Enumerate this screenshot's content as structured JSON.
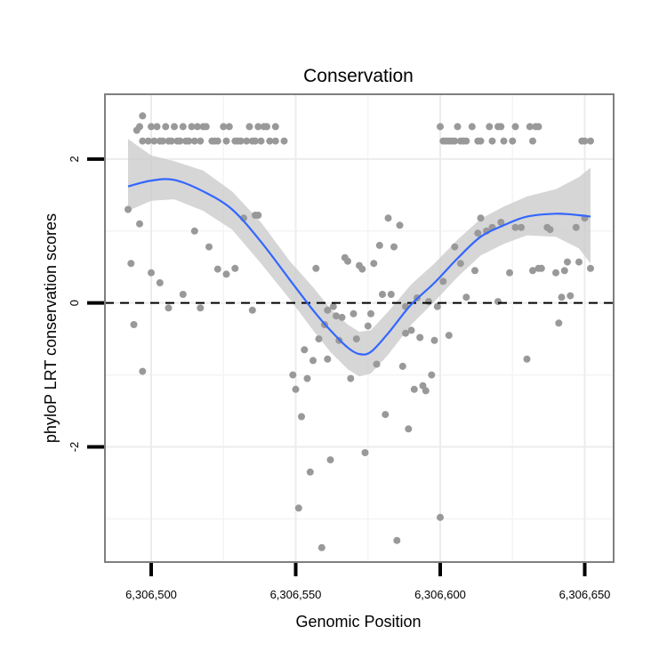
{
  "chart_data": {
    "type": "scatter",
    "title": "Conservation",
    "xlabel": "Genomic Position",
    "ylabel": "phyloP LRT conservation scores",
    "xlim": [
      6306484,
      6306660
    ],
    "ylim": [
      -3.6,
      2.9
    ],
    "x_ticks": [
      6306500,
      6306550,
      6306600,
      6306650
    ],
    "x_tick_labels": [
      "6,306,500",
      "6,306,550",
      "6,306,600",
      "6,306,650"
    ],
    "y_ticks": [
      2,
      0,
      -2
    ],
    "y_tick_labels": [
      "2",
      "0",
      "-2"
    ],
    "x_minor_gridlines": [
      6306525,
      6306575,
      6306625
    ],
    "y_minor_gridlines": [
      1,
      -1,
      -3
    ],
    "reference_line": {
      "y": 0,
      "style": "dashed"
    },
    "series": [
      {
        "name": "scores",
        "kind": "points",
        "color": "#999999",
        "points": [
          [
            6306497,
            2.6
          ],
          [
            6306495,
            2.4
          ],
          [
            6306496,
            2.45
          ],
          [
            6306497,
            2.25
          ],
          [
            6306499,
            2.25
          ],
          [
            6306500,
            2.45
          ],
          [
            6306501,
            2.25
          ],
          [
            6306502,
            2.45
          ],
          [
            6306503,
            2.25
          ],
          [
            6306504,
            2.25
          ],
          [
            6306505,
            2.45
          ],
          [
            6306506,
            2.25
          ],
          [
            6306507,
            2.25
          ],
          [
            6306508,
            2.45
          ],
          [
            6306509,
            2.25
          ],
          [
            6306510,
            2.25
          ],
          [
            6306511,
            2.45
          ],
          [
            6306512,
            2.25
          ],
          [
            6306513,
            2.25
          ],
          [
            6306514,
            2.45
          ],
          [
            6306515,
            2.25
          ],
          [
            6306516,
            2.45
          ],
          [
            6306517,
            2.25
          ],
          [
            6306518,
            2.45
          ],
          [
            6306519,
            2.45
          ],
          [
            6306521,
            2.25
          ],
          [
            6306522,
            2.25
          ],
          [
            6306523,
            2.25
          ],
          [
            6306525,
            2.45
          ],
          [
            6306526,
            2.25
          ],
          [
            6306527,
            2.45
          ],
          [
            6306529,
            2.25
          ],
          [
            6306530,
            2.25
          ],
          [
            6306531,
            2.25
          ],
          [
            6306533,
            2.25
          ],
          [
            6306534,
            2.45
          ],
          [
            6306535,
            2.25
          ],
          [
            6306536,
            2.25
          ],
          [
            6306537,
            2.45
          ],
          [
            6306538,
            2.25
          ],
          [
            6306539,
            2.45
          ],
          [
            6306540,
            2.45
          ],
          [
            6306541,
            2.25
          ],
          [
            6306543,
            2.45
          ],
          [
            6306543,
            2.25
          ],
          [
            6306546,
            2.25
          ],
          [
            6306600,
            2.45
          ],
          [
            6306601,
            2.25
          ],
          [
            6306602,
            2.25
          ],
          [
            6306603,
            2.25
          ],
          [
            6306604,
            2.25
          ],
          [
            6306605,
            2.25
          ],
          [
            6306606,
            2.45
          ],
          [
            6306607,
            2.25
          ],
          [
            6306608,
            2.25
          ],
          [
            6306609,
            2.25
          ],
          [
            6306611,
            2.45
          ],
          [
            6306613,
            2.25
          ],
          [
            6306614,
            2.25
          ],
          [
            6306617,
            2.45
          ],
          [
            6306618,
            2.25
          ],
          [
            6306620,
            2.45
          ],
          [
            6306621,
            2.45
          ],
          [
            6306622,
            2.25
          ],
          [
            6306625,
            2.25
          ],
          [
            6306626,
            2.45
          ],
          [
            6306631,
            2.45
          ],
          [
            6306632,
            2.25
          ],
          [
            6306633,
            2.45
          ],
          [
            6306634,
            2.45
          ],
          [
            6306649,
            2.25
          ],
          [
            6306650,
            2.25
          ],
          [
            6306652,
            2.25
          ],
          [
            6306492,
            1.3
          ],
          [
            6306493,
            0.55
          ],
          [
            6306494,
            -0.3
          ],
          [
            6306496,
            1.1
          ],
          [
            6306497,
            -0.95
          ],
          [
            6306500,
            0.42
          ],
          [
            6306503,
            0.28
          ],
          [
            6306506,
            -0.07
          ],
          [
            6306511,
            0.12
          ],
          [
            6306515,
            1.0
          ],
          [
            6306517,
            -0.07
          ],
          [
            6306520,
            0.78
          ],
          [
            6306523,
            0.47
          ],
          [
            6306526,
            0.4
          ],
          [
            6306529,
            0.48
          ],
          [
            6306532,
            1.18
          ],
          [
            6306535,
            -0.1
          ],
          [
            6306536,
            1.22
          ],
          [
            6306537,
            1.22
          ],
          [
            6306549,
            -1.0
          ],
          [
            6306550,
            -1.2
          ],
          [
            6306551,
            -2.85
          ],
          [
            6306552,
            -1.58
          ],
          [
            6306553,
            -0.65
          ],
          [
            6306554,
            -1.05
          ],
          [
            6306555,
            -2.35
          ],
          [
            6306556,
            -0.8
          ],
          [
            6306557,
            0.48
          ],
          [
            6306558,
            -0.5
          ],
          [
            6306559,
            -3.4
          ],
          [
            6306560,
            -0.3
          ],
          [
            6306561,
            -0.78
          ],
          [
            6306561,
            -0.1
          ],
          [
            6306562,
            -2.18
          ],
          [
            6306563,
            -0.05
          ],
          [
            6306564,
            -0.18
          ],
          [
            6306565,
            -0.52
          ],
          [
            6306566,
            -0.2
          ],
          [
            6306567,
            0.63
          ],
          [
            6306568,
            0.58
          ],
          [
            6306569,
            -1.05
          ],
          [
            6306570,
            -0.15
          ],
          [
            6306571,
            -0.5
          ],
          [
            6306572,
            0.52
          ],
          [
            6306573,
            0.47
          ],
          [
            6306574,
            -2.08
          ],
          [
            6306575,
            -0.32
          ],
          [
            6306576,
            -0.15
          ],
          [
            6306577,
            0.55
          ],
          [
            6306578,
            -0.85
          ],
          [
            6306579,
            0.8
          ],
          [
            6306580,
            0.12
          ],
          [
            6306581,
            -1.55
          ],
          [
            6306582,
            1.18
          ],
          [
            6306583,
            0.12
          ],
          [
            6306584,
            0.78
          ],
          [
            6306585,
            -3.3
          ],
          [
            6306586,
            1.08
          ],
          [
            6306587,
            -0.88
          ],
          [
            6306588,
            -0.05
          ],
          [
            6306588,
            -0.42
          ],
          [
            6306589,
            -1.75
          ],
          [
            6306590,
            -0.38
          ],
          [
            6306591,
            -1.2
          ],
          [
            6306592,
            0.07
          ],
          [
            6306593,
            -0.48
          ],
          [
            6306594,
            -1.15
          ],
          [
            6306595,
            -1.22
          ],
          [
            6306596,
            0.02
          ],
          [
            6306597,
            -1.0
          ],
          [
            6306598,
            -0.52
          ],
          [
            6306599,
            -0.05
          ],
          [
            6306600,
            -2.98
          ],
          [
            6306601,
            0.3
          ],
          [
            6306603,
            -0.45
          ],
          [
            6306605,
            0.78
          ],
          [
            6306607,
            0.55
          ],
          [
            6306609,
            0.08
          ],
          [
            6306612,
            0.45
          ],
          [
            6306613,
            0.97
          ],
          [
            6306614,
            1.18
          ],
          [
            6306616,
            1.0
          ],
          [
            6306618,
            1.05
          ],
          [
            6306620,
            0.02
          ],
          [
            6306621,
            1.12
          ],
          [
            6306624,
            0.42
          ],
          [
            6306626,
            1.05
          ],
          [
            6306628,
            1.05
          ],
          [
            6306630,
            -0.78
          ],
          [
            6306632,
            0.45
          ],
          [
            6306634,
            0.48
          ],
          [
            6306635,
            0.48
          ],
          [
            6306637,
            1.05
          ],
          [
            6306638,
            1.02
          ],
          [
            6306640,
            0.42
          ],
          [
            6306641,
            -0.28
          ],
          [
            6306642,
            0.08
          ],
          [
            6306643,
            0.45
          ],
          [
            6306644,
            0.57
          ],
          [
            6306645,
            0.1
          ],
          [
            6306647,
            1.05
          ],
          [
            6306648,
            0.57
          ],
          [
            6306650,
            1.18
          ],
          [
            6306652,
            0.48
          ]
        ]
      },
      {
        "name": "smooth fit",
        "kind": "line",
        "color": "#3366ff",
        "band_color": "#cccccc",
        "points": [
          [
            6306492,
            1.62,
            1.28,
            2.28
          ],
          [
            6306500,
            1.7,
            1.42,
            2.05
          ],
          [
            6306508,
            1.71,
            1.44,
            1.97
          ],
          [
            6306518,
            1.55,
            1.28,
            1.84
          ],
          [
            6306528,
            1.3,
            1.02,
            1.55
          ],
          [
            6306538,
            0.85,
            0.55,
            1.12
          ],
          [
            6306548,
            0.32,
            0.05,
            0.58
          ],
          [
            6306556,
            -0.1,
            -0.38,
            0.22
          ],
          [
            6306562,
            -0.38,
            -0.68,
            -0.08
          ],
          [
            6306568,
            -0.62,
            -0.92,
            -0.3
          ],
          [
            6306572,
            -0.71,
            -1.02,
            -0.4
          ],
          [
            6306576,
            -0.68,
            -0.98,
            -0.38
          ],
          [
            6306582,
            -0.42,
            -0.72,
            -0.12
          ],
          [
            6306590,
            -0.02,
            -0.3,
            0.26
          ],
          [
            6306598,
            0.28,
            0.02,
            0.55
          ],
          [
            6306606,
            0.62,
            0.36,
            0.88
          ],
          [
            6306614,
            0.92,
            0.66,
            1.17
          ],
          [
            6306622,
            1.08,
            0.82,
            1.34
          ],
          [
            6306630,
            1.2,
            0.94,
            1.48
          ],
          [
            6306640,
            1.24,
            0.92,
            1.58
          ],
          [
            6306648,
            1.22,
            0.76,
            1.75
          ],
          [
            6306652,
            1.2,
            0.55,
            1.88
          ]
        ]
      }
    ]
  }
}
